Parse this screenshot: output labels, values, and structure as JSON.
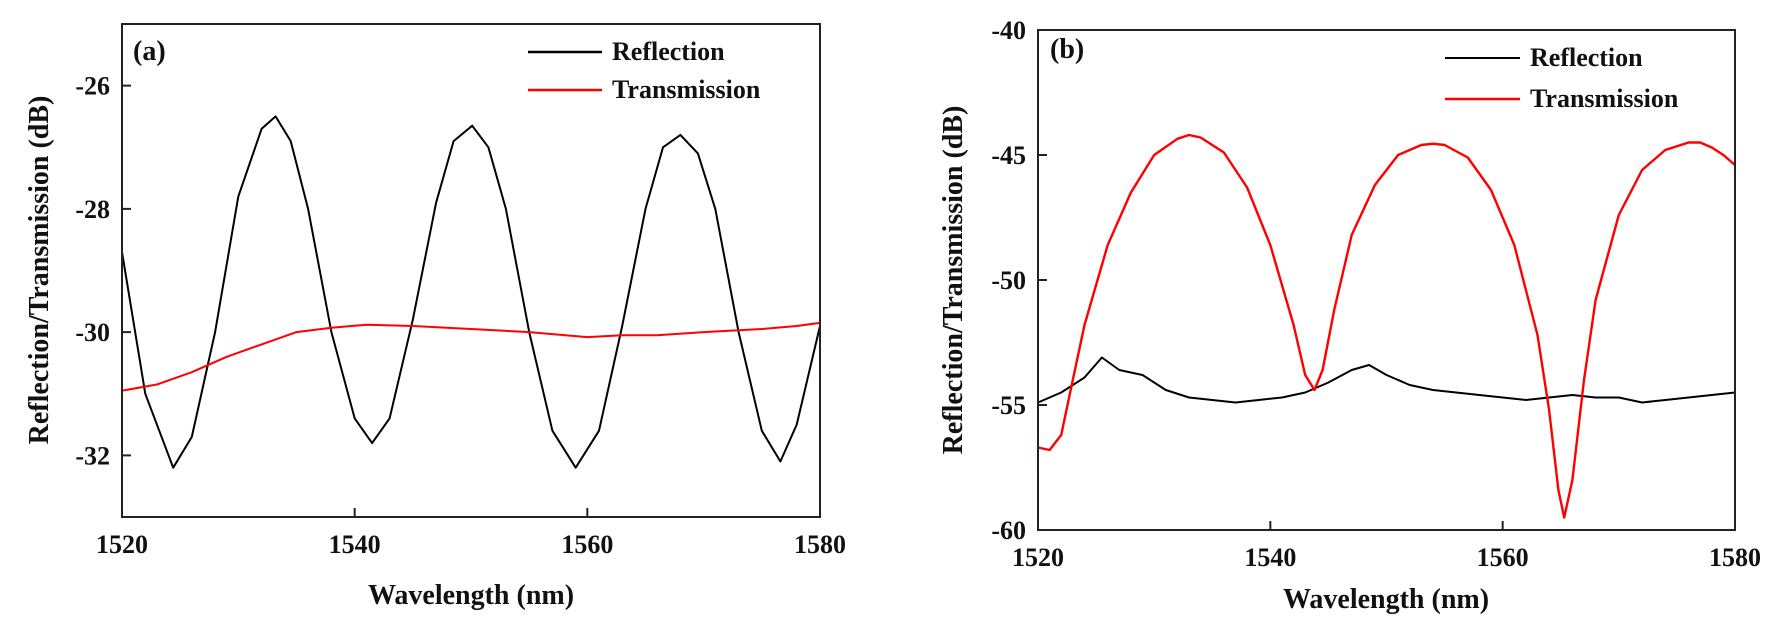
{
  "chart_data": [
    {
      "type": "line",
      "panel_label": "(a)",
      "xlabel": "Wavelength (nm)",
      "ylabel": "Reflection/Transmission (dB)",
      "xlim": [
        1520,
        1580
      ],
      "ylim": [
        -33,
        -25
      ],
      "xticks": [
        1520,
        1540,
        1560,
        1580
      ],
      "yticks": [
        -32,
        -30,
        -28,
        -26
      ],
      "legend_position": "top-right",
      "series": [
        {
          "name": "Reflection",
          "color": "#000000",
          "x": [
            1520,
            1522,
            1524.4,
            1526,
            1528,
            1530,
            1532,
            1533.2,
            1534.5,
            1536,
            1538,
            1540,
            1541.5,
            1543,
            1545,
            1547,
            1548.5,
            1550.1,
            1551.5,
            1553,
            1555,
            1557,
            1559,
            1561,
            1563,
            1565,
            1566.5,
            1568,
            1569.5,
            1571,
            1573,
            1575,
            1576.6,
            1578,
            1580
          ],
          "y": [
            -28.7,
            -31.0,
            -32.2,
            -31.7,
            -30.0,
            -27.8,
            -26.7,
            -26.5,
            -26.9,
            -28.0,
            -30.0,
            -31.4,
            -31.8,
            -31.4,
            -29.8,
            -27.9,
            -26.9,
            -26.65,
            -27.0,
            -28.0,
            -30.0,
            -31.6,
            -32.2,
            -31.6,
            -29.9,
            -28.0,
            -27.0,
            -26.8,
            -27.1,
            -28.0,
            -30.0,
            -31.6,
            -32.1,
            -31.5,
            -29.9
          ]
        },
        {
          "name": "Transmission",
          "color": "#ff0000",
          "x": [
            1520,
            1523,
            1526,
            1529,
            1532,
            1535,
            1538,
            1541,
            1545,
            1550,
            1555,
            1560,
            1563,
            1566,
            1570,
            1575,
            1578,
            1580
          ],
          "y": [
            -30.95,
            -30.85,
            -30.65,
            -30.4,
            -30.2,
            -30.0,
            -29.93,
            -29.88,
            -29.9,
            -29.95,
            -30.0,
            -30.08,
            -30.05,
            -30.05,
            -30.0,
            -29.95,
            -29.9,
            -29.85
          ]
        }
      ]
    },
    {
      "type": "line",
      "panel_label": "(b)",
      "xlabel": "Wavelength (nm)",
      "ylabel": "Reflection/Transmission (dB)",
      "xlim": [
        1520,
        1580
      ],
      "ylim": [
        -60,
        -40
      ],
      "xticks": [
        1520,
        1540,
        1560,
        1580
      ],
      "yticks": [
        -60,
        -55,
        -50,
        -45,
        -40
      ],
      "legend_position": "top-right",
      "series": [
        {
          "name": "Reflection",
          "color": "#000000",
          "x": [
            1520,
            1522,
            1524,
            1525.5,
            1527,
            1529,
            1531,
            1533,
            1535,
            1537,
            1539,
            1541,
            1543,
            1545,
            1547,
            1548.5,
            1550,
            1552,
            1554,
            1556,
            1558,
            1560,
            1562,
            1564,
            1566,
            1568,
            1570,
            1572,
            1574,
            1576,
            1578,
            1580
          ],
          "y": [
            -54.9,
            -54.5,
            -53.9,
            -53.1,
            -53.6,
            -53.8,
            -54.4,
            -54.7,
            -54.8,
            -54.9,
            -54.8,
            -54.7,
            -54.5,
            -54.1,
            -53.6,
            -53.4,
            -53.8,
            -54.2,
            -54.4,
            -54.5,
            -54.6,
            -54.7,
            -54.8,
            -54.7,
            -54.6,
            -54.7,
            -54.7,
            -54.9,
            -54.8,
            -54.7,
            -54.6,
            -54.5
          ]
        },
        {
          "name": "Transmission",
          "color": "#ff0000",
          "x": [
            1520,
            1521,
            1522,
            1523,
            1524,
            1526,
            1528,
            1530,
            1532,
            1533,
            1534,
            1536,
            1538,
            1540,
            1542,
            1543,
            1543.8,
            1544.5,
            1545.5,
            1547,
            1549,
            1551,
            1553,
            1554,
            1555,
            1557,
            1559,
            1561,
            1563,
            1564,
            1564.8,
            1565.3,
            1566,
            1567,
            1568,
            1570,
            1572,
            1574,
            1576,
            1577,
            1578,
            1579,
            1580
          ],
          "y": [
            -56.7,
            -56.8,
            -56.2,
            -54.0,
            -51.8,
            -48.6,
            -46.5,
            -45.0,
            -44.35,
            -44.2,
            -44.3,
            -44.9,
            -46.3,
            -48.6,
            -51.8,
            -53.8,
            -54.4,
            -53.6,
            -51.2,
            -48.2,
            -46.2,
            -45.0,
            -44.6,
            -44.55,
            -44.6,
            -45.1,
            -46.4,
            -48.6,
            -52.2,
            -55.2,
            -58.4,
            -59.5,
            -58.0,
            -54.0,
            -50.8,
            -47.4,
            -45.6,
            -44.8,
            -44.5,
            -44.5,
            -44.7,
            -45.0,
            -45.4
          ]
        }
      ]
    }
  ]
}
